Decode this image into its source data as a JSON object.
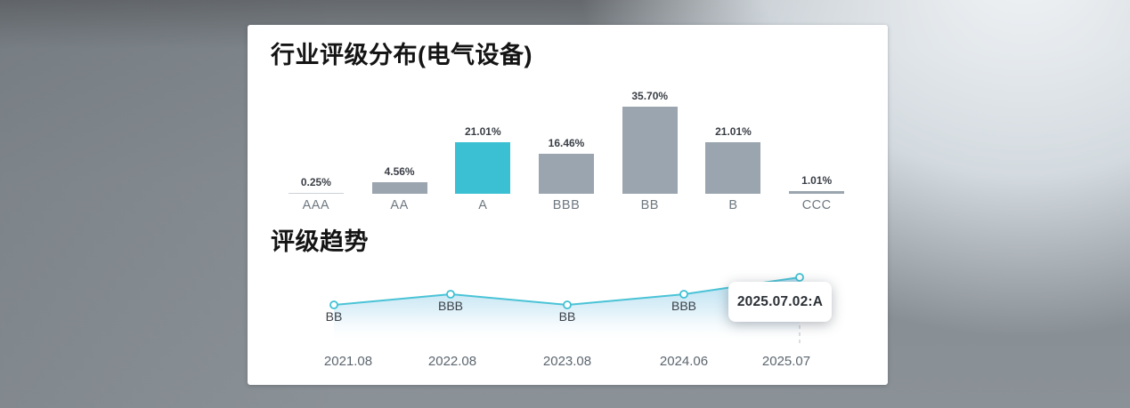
{
  "colors": {
    "bar_default": "#9aa5af",
    "bar_muted_first": "#ccd2d7",
    "bar_highlight": "#3bc0d3",
    "line": "#4ac3d6",
    "marker_stroke": "#3fc1d4",
    "area_top": "#9ed6ec",
    "dashed_guide": "#c0c8cf"
  },
  "chart_data": [
    {
      "type": "bar",
      "title": "行业评级分布(电气设备)",
      "categories": [
        "AAA",
        "AA",
        "A",
        "BBB",
        "BB",
        "B",
        "CCC"
      ],
      "values": [
        0.25,
        4.56,
        21.01,
        16.46,
        35.7,
        21.01,
        1.01
      ],
      "value_labels": [
        "0.25%",
        "4.56%",
        "21.01%",
        "16.46%",
        "35.70%",
        "21.01%",
        "1.01%"
      ],
      "highlight_index": 2,
      "ylim": [
        0,
        35.7
      ],
      "grid": "off",
      "legend": "none"
    },
    {
      "type": "line",
      "title": "评级趋势",
      "x": [
        "2021.08",
        "2022.08",
        "2023.08",
        "2024.06",
        "2025.07"
      ],
      "ratings": [
        "BB",
        "BBB",
        "BB",
        "BBB",
        "A"
      ],
      "point_labels": [
        "BB",
        "BBB",
        "BB",
        "BBB",
        ""
      ],
      "tooltip": "2025.07.02:A",
      "area_fill": "gradient-fade",
      "grid": "off",
      "legend": "none"
    }
  ]
}
